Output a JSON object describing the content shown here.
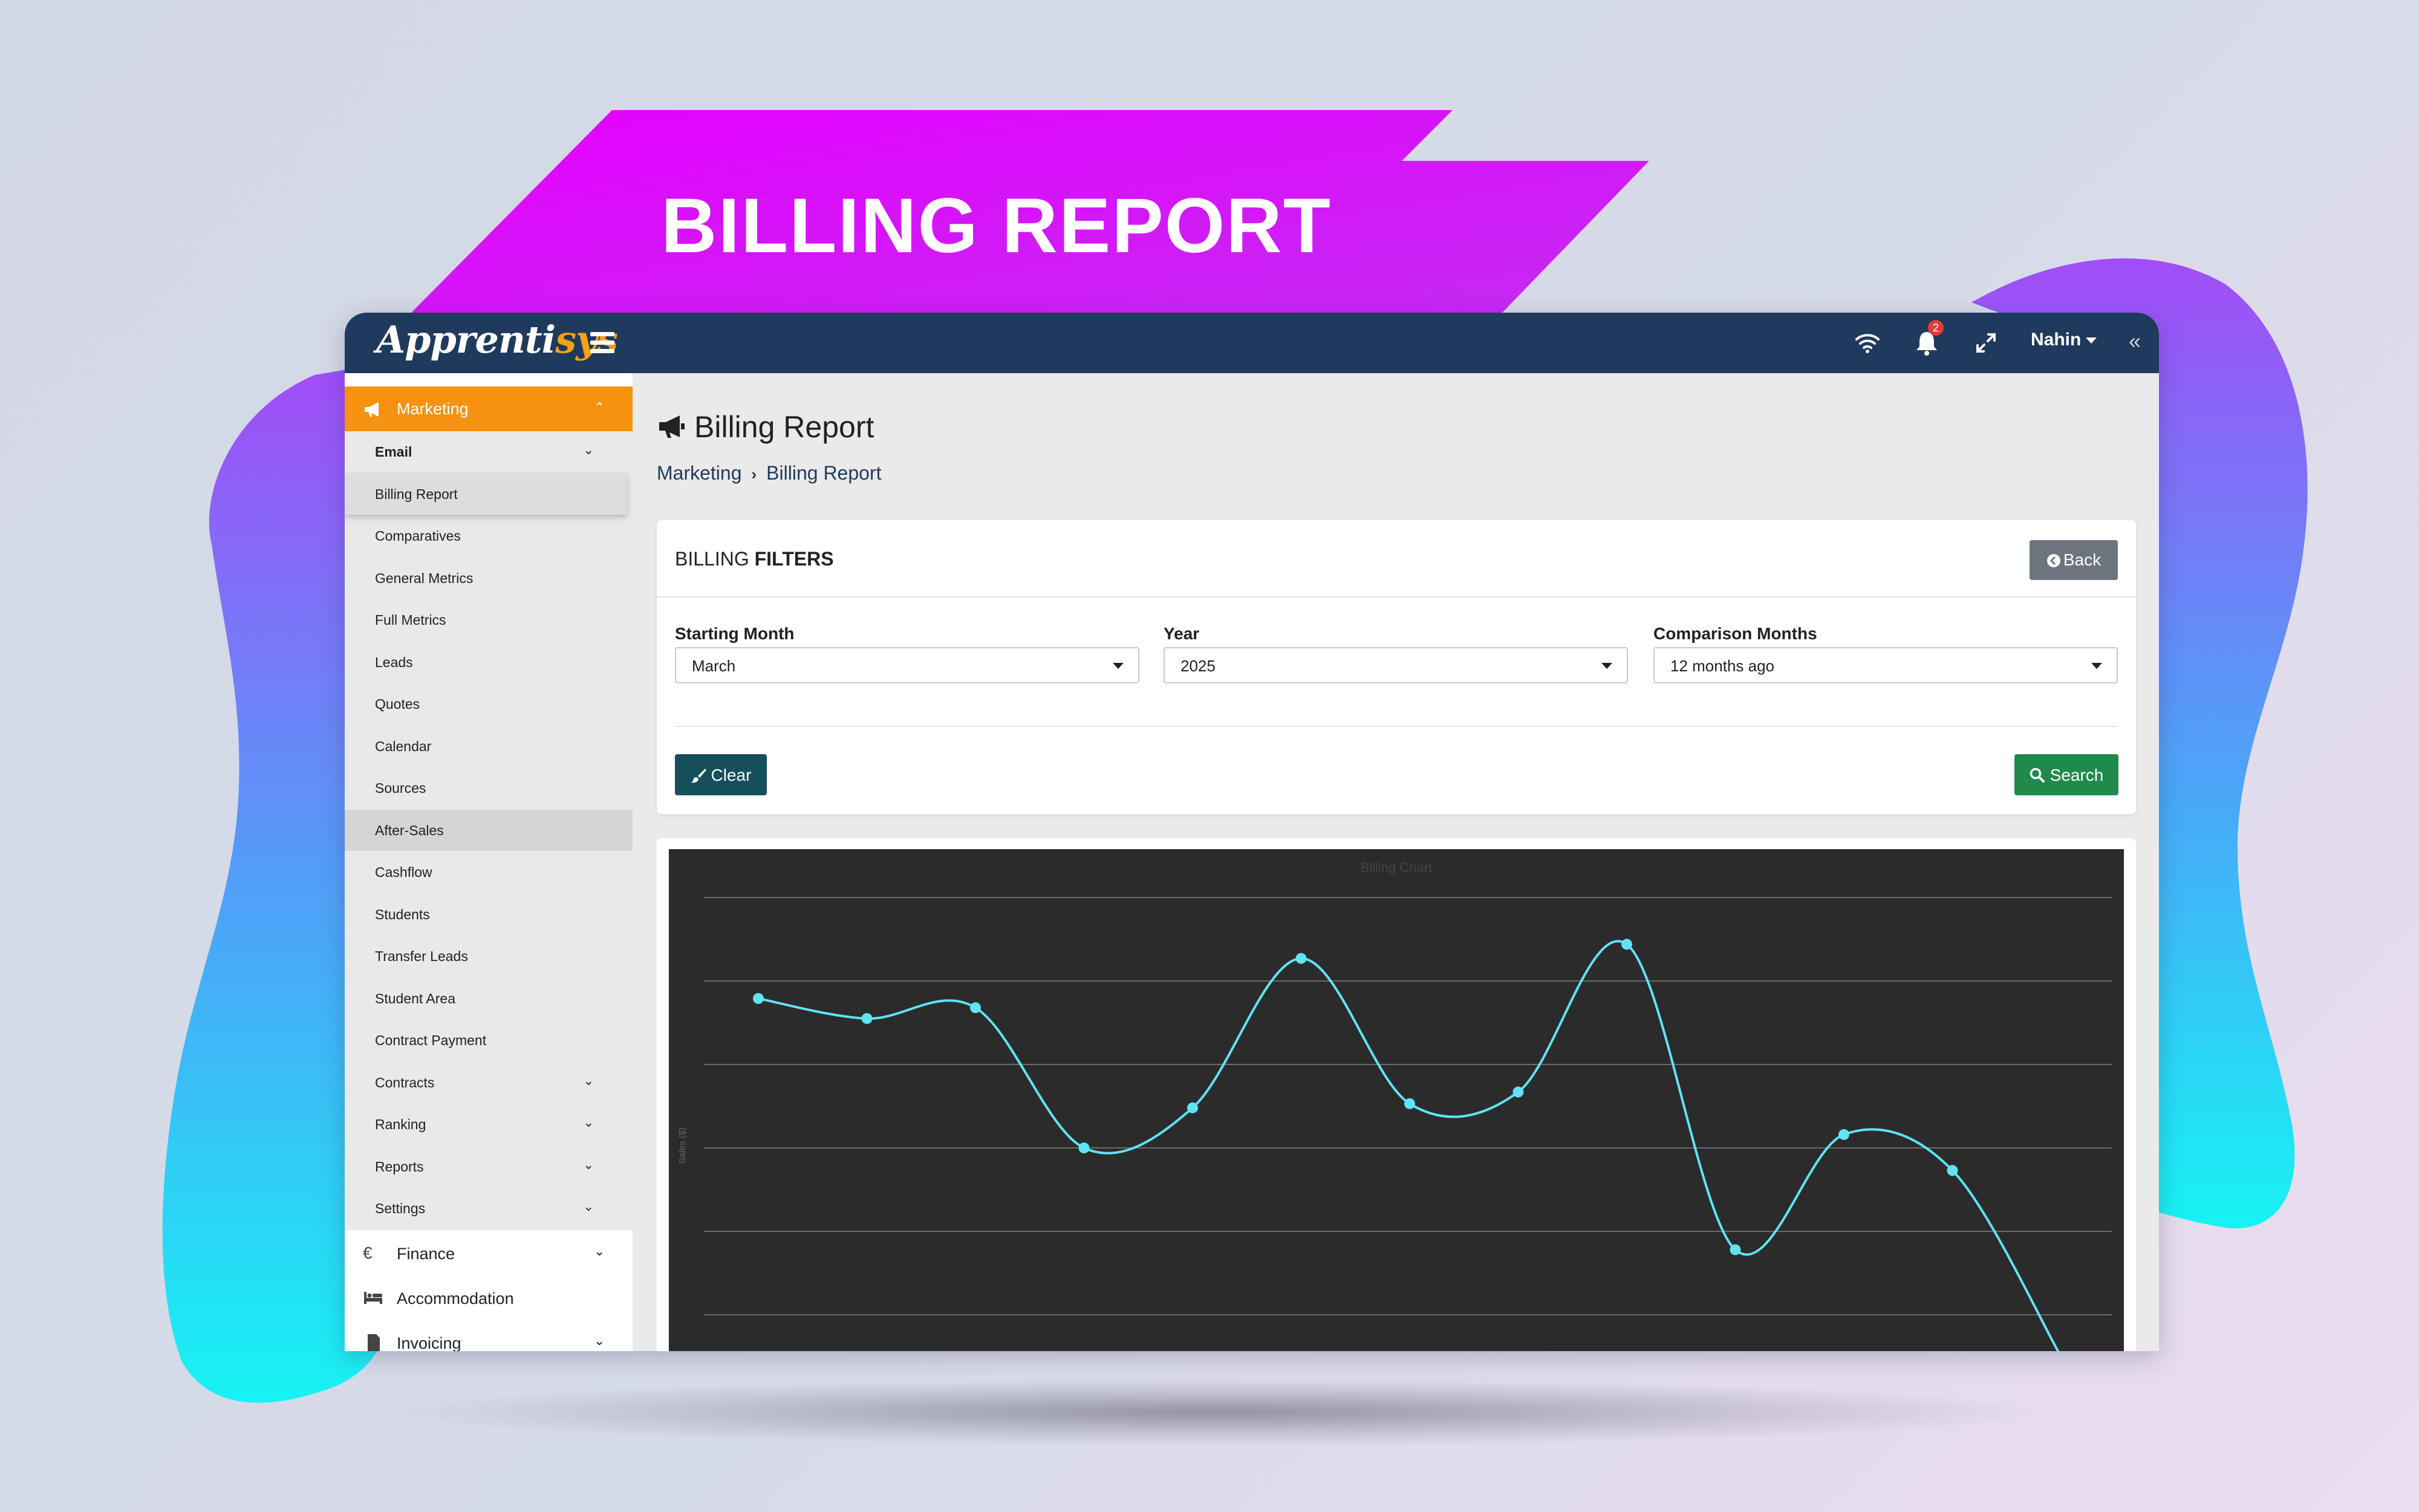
{
  "banner": {
    "title": "BILLING REPORT"
  },
  "app": {
    "logo_main": "Apprenti",
    "logo_accent": "sys",
    "notifications_count": "2",
    "user_name": "Nahin"
  },
  "sidebar": {
    "marketing_label": "Marketing",
    "email_label": "Email",
    "items": [
      {
        "label": "Billing Report"
      },
      {
        "label": "Comparatives"
      },
      {
        "label": "General Metrics"
      },
      {
        "label": "Full Metrics"
      },
      {
        "label": "Leads"
      },
      {
        "label": "Quotes"
      },
      {
        "label": "Calendar"
      },
      {
        "label": "Sources"
      },
      {
        "label": "After-Sales"
      },
      {
        "label": "Cashflow"
      },
      {
        "label": "Students"
      },
      {
        "label": "Transfer Leads"
      },
      {
        "label": "Student Area"
      },
      {
        "label": "Contract Payment"
      },
      {
        "label": "Contracts"
      },
      {
        "label": "Ranking"
      },
      {
        "label": "Reports"
      },
      {
        "label": "Settings"
      }
    ],
    "sections": [
      {
        "label": "Finance",
        "icon": "euro-icon"
      },
      {
        "label": "Accommodation",
        "icon": "bed-icon"
      },
      {
        "label": "Invoicing",
        "icon": "file-icon"
      }
    ]
  },
  "page": {
    "title": "Billing Report",
    "breadcrumb": [
      "Marketing",
      "Billing Report"
    ]
  },
  "filters": {
    "title_prefix": "BILLING ",
    "title_bold": "FILTERS",
    "back_label": "Back",
    "starting_month_label": "Starting Month",
    "starting_month_value": "March",
    "year_label": "Year",
    "year_value": "2025",
    "comparison_label": "Comparison Months",
    "comparison_value": "12 months ago",
    "clear_label": "Clear",
    "search_label": "Search"
  },
  "colors": {
    "accent_orange": "#f6920f",
    "navbar": "#1f3a5c",
    "banner_magenta": "#e000f5",
    "chart_line": "#5fe3f5"
  },
  "chart_data": {
    "type": "line",
    "title": "Billing Chart",
    "ylabel": "Sales ($)",
    "xlabel": "",
    "grid": true,
    "series": [
      {
        "values": [
          3.79,
          3.55,
          3.68,
          2.0,
          2.48,
          4.27,
          2.53,
          2.67,
          4.44,
          0.78,
          2.16,
          1.73,
          -0.5
        ]
      }
    ],
    "ylim": [
      0,
      5
    ]
  }
}
